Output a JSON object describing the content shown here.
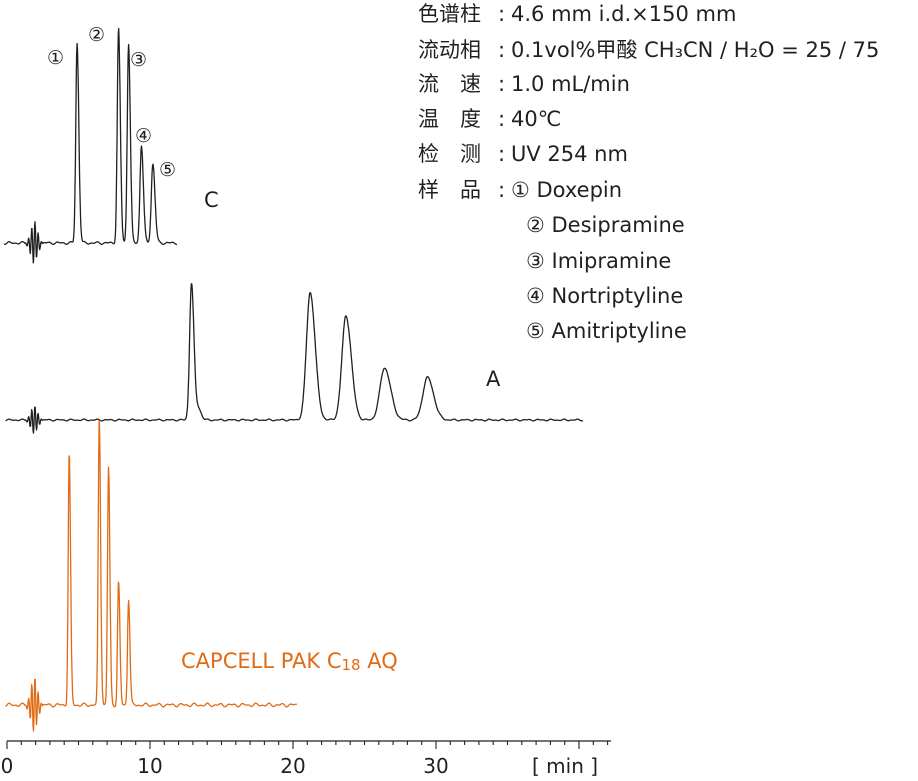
{
  "chart_data": {
    "type": "line",
    "x_axis": {
      "ticks": [
        0,
        10,
        20,
        30
      ],
      "unit_label": "[ min ]",
      "range": [
        0,
        42
      ]
    },
    "conditions": [
      {
        "key": "色谱柱",
        "value": "4.6 mm i.d.×150 mm"
      },
      {
        "key": "流动相",
        "value": "0.1vol%甲酸 CH₃CN / H₂O = 25 / 75"
      },
      {
        "key": "流　速",
        "value": "1.0 mL/min"
      },
      {
        "key": "温　度",
        "value": "40℃"
      },
      {
        "key": "检　测",
        "value": "UV 254 nm"
      },
      {
        "key": "样　品",
        "value": "① Doxepin"
      }
    ],
    "samples_continued": [
      "② Desipramine",
      "③ Imipramine",
      "④ Nortriptyline",
      "⑤ Amitriptyline"
    ],
    "peak_markers": [
      "①",
      "②",
      "③",
      "④",
      "⑤"
    ],
    "series": [
      {
        "name": "C",
        "color": "#231f20",
        "x_range": [
          -0.2,
          11.9
        ],
        "injection": 1.9,
        "peaks": [
          {
            "id": "①",
            "rt": 4.9,
            "height": 0.96,
            "width": 0.09
          },
          {
            "id": "②",
            "rt": 7.8,
            "height": 1.03,
            "width": 0.09
          },
          {
            "id": "③",
            "rt": 8.5,
            "height": 0.96,
            "width": 0.09
          },
          {
            "id": "④",
            "rt": 9.4,
            "height": 0.47,
            "width": 0.1
          },
          {
            "id": "⑤",
            "rt": 10.2,
            "height": 0.38,
            "width": 0.11
          }
        ]
      },
      {
        "name": "A",
        "color": "#231f20",
        "x_range": [
          -0.1,
          40.3
        ],
        "injection": 1.9,
        "peaks": [
          {
            "rt": 12.9,
            "height": 1.0,
            "width": 0.13
          },
          {
            "rt": 13.4,
            "height": 0.08,
            "width": 0.14
          },
          {
            "rt": 21.2,
            "height": 0.93,
            "width": 0.26
          },
          {
            "rt": 23.7,
            "height": 0.76,
            "width": 0.28
          },
          {
            "rt": 26.4,
            "height": 0.38,
            "width": 0.32
          },
          {
            "rt": 29.4,
            "height": 0.31,
            "width": 0.32
          }
        ]
      },
      {
        "name": "CAPCELL PAK C18 AQ",
        "color": "#e06b14",
        "x_range": [
          -0.1,
          20.3
        ],
        "injection": 1.9,
        "peaks": [
          {
            "rt": 4.35,
            "height": 0.92,
            "width": 0.07
          },
          {
            "rt": 6.45,
            "height": 1.05,
            "width": 0.07
          },
          {
            "rt": 7.1,
            "height": 0.87,
            "width": 0.07
          },
          {
            "rt": 7.8,
            "height": 0.45,
            "width": 0.07
          },
          {
            "rt": 8.5,
            "height": 0.39,
            "width": 0.07
          }
        ]
      }
    ]
  }
}
